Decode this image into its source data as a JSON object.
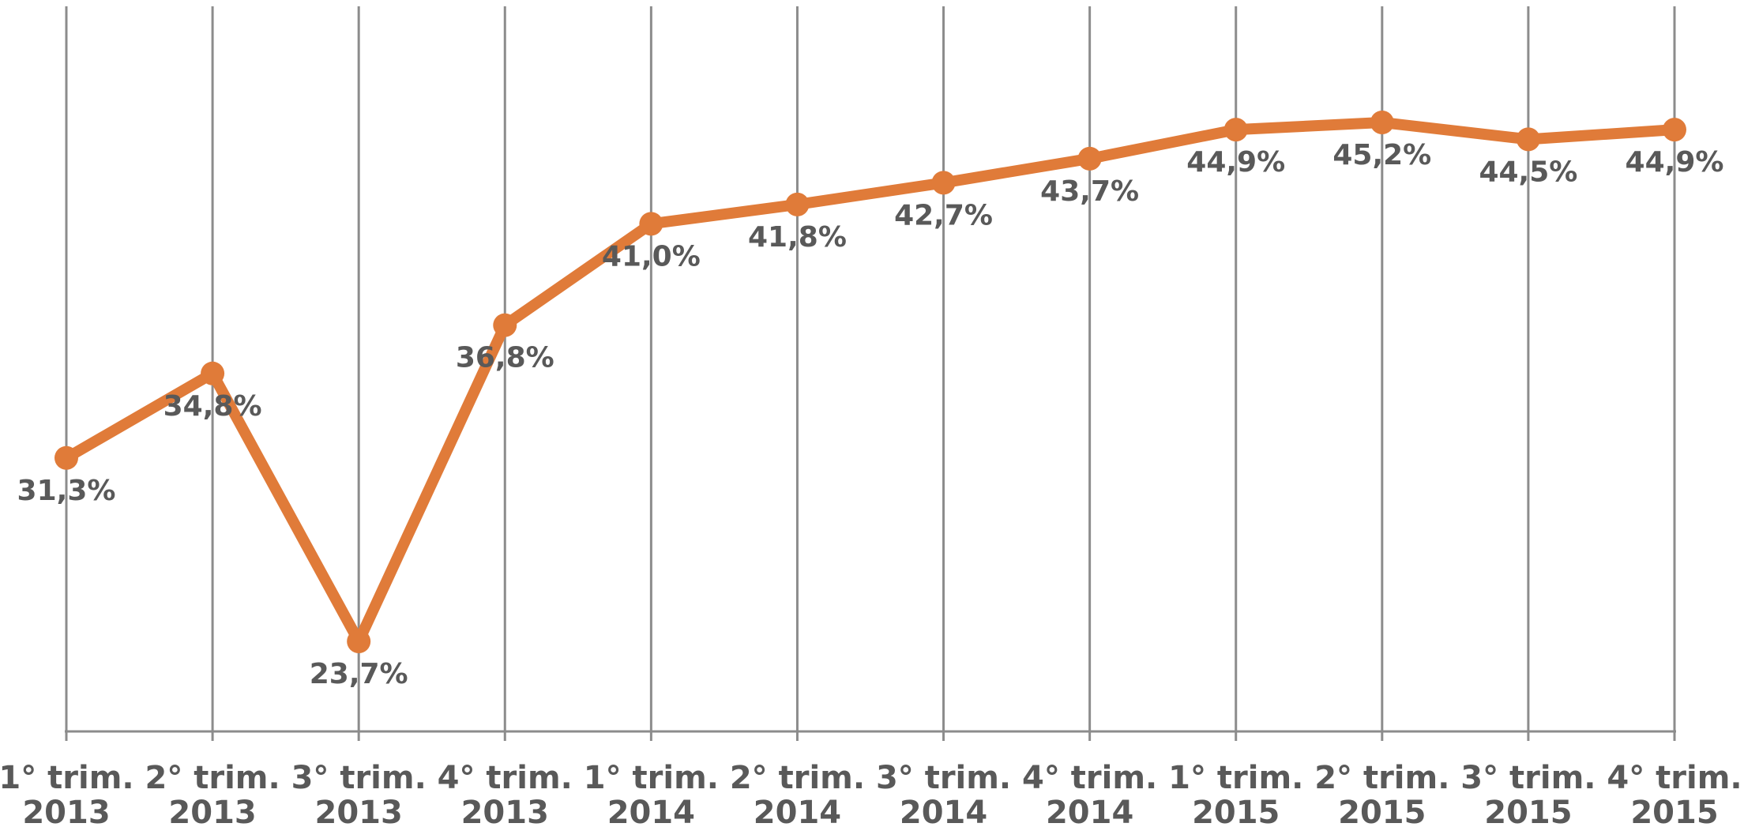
{
  "chart_data": {
    "type": "line",
    "title": "",
    "xlabel": "",
    "ylabel": "",
    "categories": [
      [
        "1° trim.",
        "2013"
      ],
      [
        "2° trim.",
        "2013"
      ],
      [
        "3° trim.",
        "2013"
      ],
      [
        "4° trim.",
        "2013"
      ],
      [
        "1° trim.",
        "2014"
      ],
      [
        "2° trim.",
        "2014"
      ],
      [
        "3° trim.",
        "2014"
      ],
      [
        "4° trim.",
        "2014"
      ],
      [
        "1° trim.",
        "2015"
      ],
      [
        "2° trim.",
        "2015"
      ],
      [
        "3° trim.",
        "2015"
      ],
      [
        "4° trim.",
        "2015"
      ]
    ],
    "series": [
      {
        "values": [
          31.3,
          34.8,
          23.7,
          36.8,
          41.0,
          41.8,
          42.7,
          43.7,
          44.9,
          45.2,
          44.5,
          44.9
        ],
        "labels": [
          "31,3%",
          "34,8%",
          "23,7%",
          "36,8%",
          "41,0%",
          "41,8%",
          "42,7%",
          "43,7%",
          "44,9%",
          "45,2%",
          "44,5%",
          "44,9%"
        ],
        "color": "#e07b39"
      }
    ],
    "ylim": [
      0,
      50
    ],
    "y_axis_visible": false,
    "grid": "vertical lines at categories",
    "legend": "none"
  }
}
